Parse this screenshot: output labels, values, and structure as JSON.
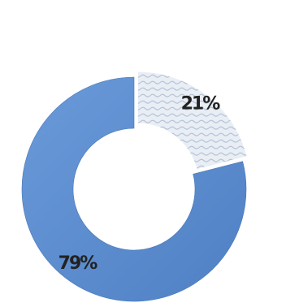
{
  "chart_data": {
    "type": "pie",
    "style": "exploded donut",
    "title": "",
    "slices": [
      {
        "label": "21%",
        "value": 21,
        "color": "#dfe7f1",
        "pattern": "wave"
      },
      {
        "label": "79%",
        "value": 79,
        "color": "#5b8cd0",
        "pattern": "solid"
      }
    ],
    "legend": "none",
    "grid": false
  }
}
